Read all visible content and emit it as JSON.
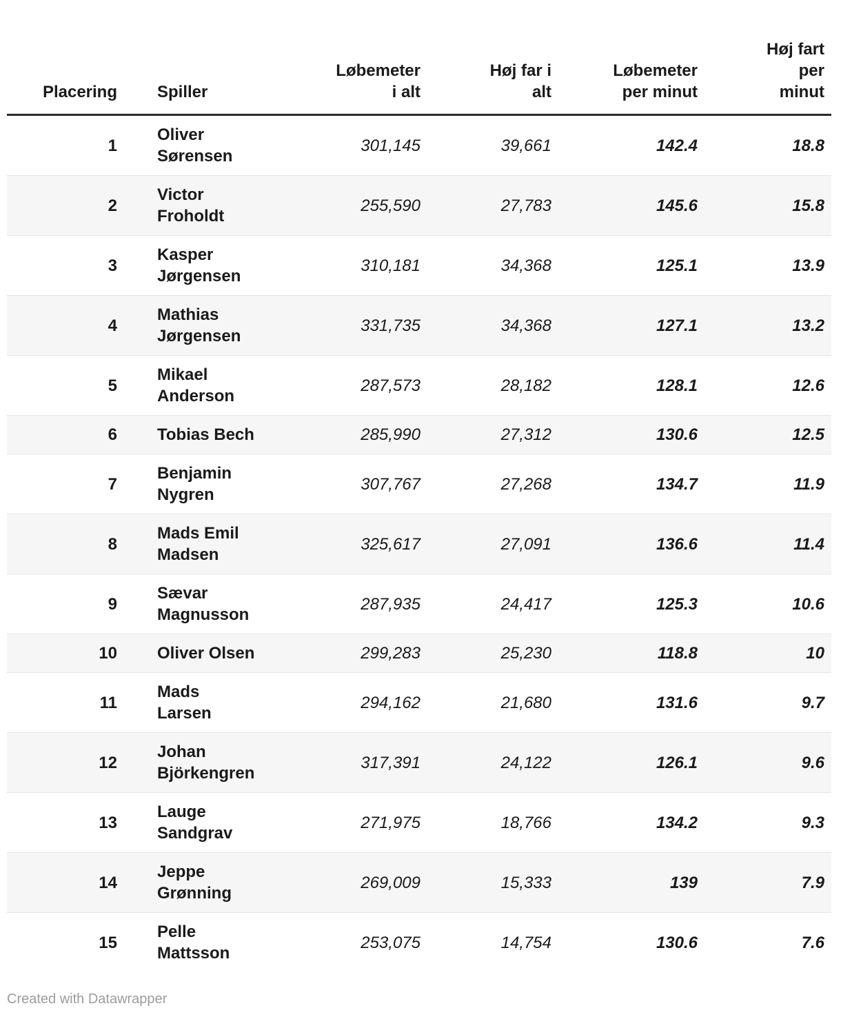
{
  "chart_data": {
    "type": "table",
    "title": "",
    "columns": [
      "Placering",
      "Spiller",
      "Løbemeter\ni alt",
      "Høj far i\nalt",
      "Løbemeter\nper minut",
      "Høj fart\nper\nminut"
    ],
    "rows": [
      [
        "1",
        "Oliver\nSørensen",
        "301,145",
        "39,661",
        "142.4",
        "18.8"
      ],
      [
        "2",
        "Victor\nFroholdt",
        "255,590",
        "27,783",
        "145.6",
        "15.8"
      ],
      [
        "3",
        "Kasper\nJørgensen",
        "310,181",
        "34,368",
        "125.1",
        "13.9"
      ],
      [
        "4",
        "Mathias\nJørgensen",
        "331,735",
        "34,368",
        "127.1",
        "13.2"
      ],
      [
        "5",
        "Mikael\nAnderson",
        "287,573",
        "28,182",
        "128.1",
        "12.6"
      ],
      [
        "6",
        "Tobias Bech",
        "285,990",
        "27,312",
        "130.6",
        "12.5"
      ],
      [
        "7",
        "Benjamin\nNygren",
        "307,767",
        "27,268",
        "134.7",
        "11.9"
      ],
      [
        "8",
        "Mads Emil\nMadsen",
        "325,617",
        "27,091",
        "136.6",
        "11.4"
      ],
      [
        "9",
        "Sævar\nMagnusson",
        "287,935",
        "24,417",
        "125.3",
        "10.6"
      ],
      [
        "10",
        "Oliver Olsen",
        "299,283",
        "25,230",
        "118.8",
        "10"
      ],
      [
        "11",
        "Mads\nLarsen",
        "294,162",
        "21,680",
        "131.6",
        "9.7"
      ],
      [
        "12",
        "Johan\nBjörkengren",
        "317,391",
        "24,122",
        "126.1",
        "9.6"
      ],
      [
        "13",
        "Lauge\nSandgrav",
        "271,975",
        "18,766",
        "134.2",
        "9.3"
      ],
      [
        "14",
        "Jeppe\nGrønning",
        "269,009",
        "15,333",
        "139",
        "7.9"
      ],
      [
        "15",
        "Pelle\nMattsson",
        "253,075",
        "14,754",
        "130.6",
        "7.6"
      ]
    ],
    "layout_hints": {
      "striped_rows": true,
      "stripe_on": "even",
      "numeric_columns_right_aligned": true
    }
  },
  "footer": {
    "credit": "Created with Datawrapper"
  },
  "colors": {
    "background": "#ffffff",
    "text": "#1a1a1a",
    "stripe": "#f6f6f6",
    "row_divider": "#e5e5e5",
    "header_rule": "#2b2b2b",
    "credit_text": "#9c9c9c"
  }
}
